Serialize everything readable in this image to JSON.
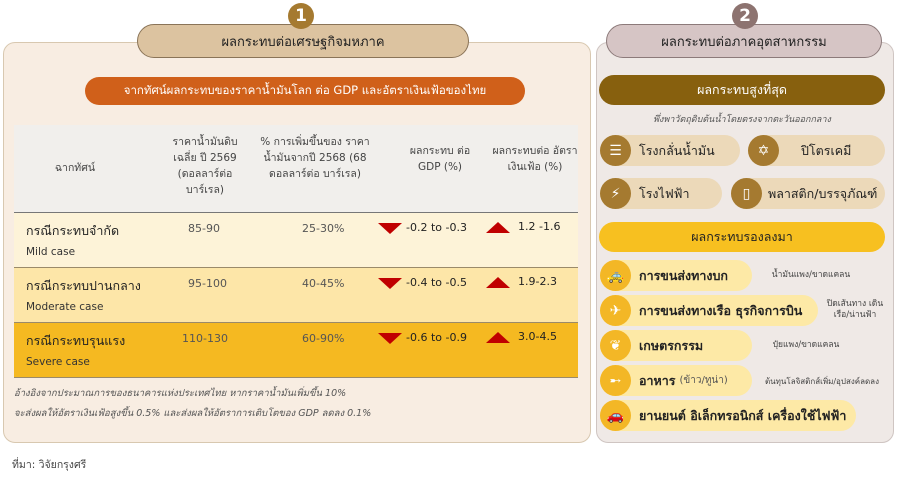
{
  "left": {
    "number": "1",
    "title": "ผลกระทบต่อเศรษฐกิจมหภาค",
    "banner": "จากทัศน์ผลกระทบของราคาน้ำมันโลก ต่อ GDP และอัตราเงินเฟ้อของไทย",
    "headers": [
      "ฉากทัศน์",
      "ราคาน้ำมันดิบ เฉลี่ย ปี 2569 (ดอลลาร์ต่อ บาร์เรล)",
      "% การเพิ่มขึ้นของ ราคาน้ำมันจากปี 2568 (68 ดอลลาร์ต่อ บาร์เรล)",
      "ผลกระทบ ต่อ GDP (%)",
      "ผลกระทบต่อ อัตราเงินเฟ้อ (%)"
    ],
    "rows": [
      {
        "name": "กรณีกระทบจำกัด",
        "en": "Mild case",
        "price": "85-90",
        "increase": "25-30%",
        "gdp": "-0.2 to -0.3",
        "inflation": "1.2 -1.6",
        "bg": "#fdf3d8"
      },
      {
        "name": "กรณีกระทบปานกลาง",
        "en": "Moderate case",
        "price": "95-100",
        "increase": "40-45%",
        "gdp": "-0.4 to -0.5",
        "inflation": "1.9-2.3",
        "bg": "#fde6a8"
      },
      {
        "name": "กรณีกระทบรุนแรง",
        "en": "Severe case",
        "price": "110-130",
        "increase": "60-90%",
        "gdp": "-0.6 to -0.9",
        "inflation": "3.0-4.5",
        "bg": "#f5b921"
      }
    ],
    "note1": "อ้างอิงจากประมาณการของธนาคารแห่งประเทศไทย หากราคาน้ำมันเพิ่มขึ้น 10%",
    "note2": "จะส่งผลให้อัตราเงินเฟ้อสูงขึ้น 0.5% และส่งผลให้อัตราการเติบโตของ GDP ลดลง 0.1%"
  },
  "right": {
    "number": "2",
    "title": "ผลกระทบต่อภาคอุตสาหกรรม",
    "highest": "ผลกระทบสูงที่สุด",
    "highest_sub": "พึ่งพาวัตถุดิบต้นน้ำโดยตรงจากตะวันออกกลาง",
    "highest_items": [
      {
        "label": "โรงกลั่นน้ำมัน",
        "icon": "oil-barrel"
      },
      {
        "label": "ปิโตรเคมี",
        "icon": "molecule"
      },
      {
        "label": "โรงไฟฟ้า",
        "icon": "power-tower"
      },
      {
        "label": "พลาสติก/บรรจุภัณฑ์",
        "icon": "bottle"
      }
    ],
    "secondary": "ผลกระทบรองลงมา",
    "secondary_items": [
      {
        "label": "การขนส่งทางบก",
        "sub": "",
        "note": "น้ำมันแพง/ขาดแคลน",
        "icon": "taxi"
      },
      {
        "label": "การขนส่งทางเรือ ธุรกิจการบิน",
        "sub": "",
        "note": "ปิดเส้นทาง เดินเรือ/น่านฟ้า",
        "icon": "airplane"
      },
      {
        "label": "เกษตรกรรม",
        "sub": "",
        "note": "ปุ๋ยแพง/ขาดแคลน",
        "icon": "wheat"
      },
      {
        "label": "อาหาร",
        "sub": "(ข้าว/ทูน่า)",
        "note": "ต้นทุนโลจิสติกส์เพิ่ม/อุปสงค์ลดลง",
        "icon": "fish"
      },
      {
        "label": "ยานยนต์ อิเล็กทรอนิกส์ เครื่องใช้ไฟฟ้า",
        "sub": "",
        "note": "",
        "icon": "car"
      }
    ]
  },
  "source": "ที่มา: วิจัยกรุงศรี",
  "colors": {
    "brown": "#a57a30",
    "orange": "#d0601a",
    "dark_gold": "#87600e",
    "yellow": "#f3b726",
    "down": "#c00000"
  }
}
